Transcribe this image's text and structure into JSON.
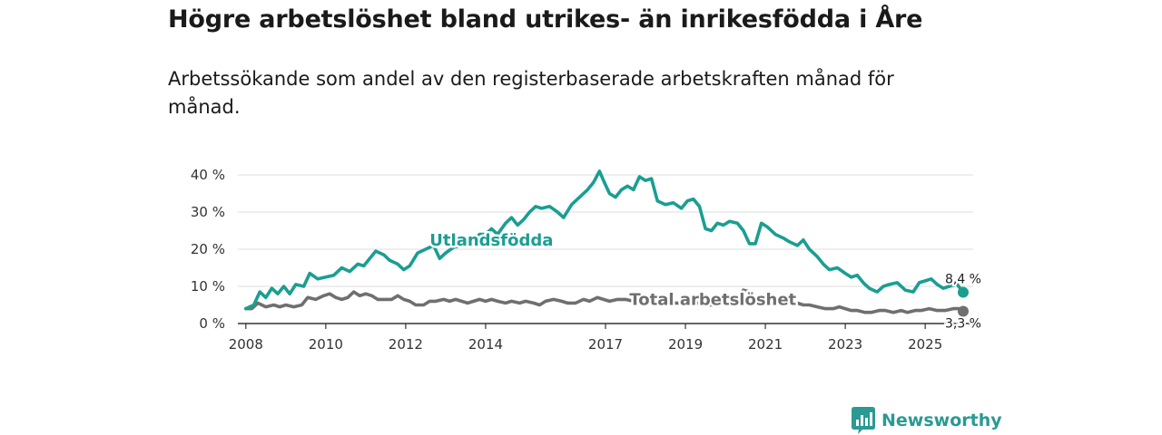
{
  "title": "Högre arbetslöshet bland utrikes- än inrikesfödda i Åre",
  "subtitle": "Arbetssökande som andel av den registerbaserade arbetskraften månad för månad.",
  "brand": {
    "name": "Newsworthy",
    "icon": "bar-chart-logo-icon"
  },
  "colors": {
    "foreign": "#1a9e92",
    "total": "#6f6f6f",
    "grid": "#dddddd",
    "axis": "#333333"
  },
  "chart_data": {
    "type": "line",
    "title": "Högre arbetslöshet bland utrikes- än inrikesfödda i Åre",
    "xlabel": "",
    "ylabel": "",
    "xlim": [
      2007.8,
      2026.2
    ],
    "ylim": [
      0,
      40
    ],
    "y_ticks": [
      0,
      10,
      20,
      30,
      40
    ],
    "y_tick_labels": [
      "0 %",
      "10 %",
      "20 %",
      "30 %",
      "40 %"
    ],
    "x_ticks": [
      2008,
      2010,
      2012,
      2014,
      2017,
      2019,
      2021,
      2023,
      2025
    ],
    "x_tick_labels": [
      "2008",
      "2010",
      "2012",
      "2014",
      "2017",
      "2019",
      "2021",
      "2023",
      "2025"
    ],
    "grid": true,
    "series": [
      {
        "name": "Utlandsfödda",
        "end_label": "8,4 %",
        "points": [
          [
            2008.0,
            4
          ],
          [
            2008.2,
            5
          ],
          [
            2008.35,
            8.5
          ],
          [
            2008.5,
            7
          ],
          [
            2008.65,
            9.5
          ],
          [
            2008.8,
            8
          ],
          [
            2008.95,
            10
          ],
          [
            2009.1,
            8
          ],
          [
            2009.25,
            10.5
          ],
          [
            2009.45,
            10
          ],
          [
            2009.6,
            13.5
          ],
          [
            2009.8,
            12
          ],
          [
            2010.0,
            12.5
          ],
          [
            2010.2,
            13
          ],
          [
            2010.4,
            15
          ],
          [
            2010.6,
            14
          ],
          [
            2010.8,
            16
          ],
          [
            2010.95,
            15.5
          ],
          [
            2011.1,
            17.5
          ],
          [
            2011.25,
            19.5
          ],
          [
            2011.45,
            18.5
          ],
          [
            2011.6,
            17
          ],
          [
            2011.8,
            16
          ],
          [
            2011.95,
            14.5
          ],
          [
            2012.1,
            15.5
          ],
          [
            2012.3,
            19
          ],
          [
            2012.5,
            20
          ],
          [
            2012.7,
            21
          ],
          [
            2012.85,
            17.5
          ],
          [
            2013.0,
            19
          ],
          [
            2013.2,
            20.5
          ],
          [
            2013.4,
            21
          ],
          [
            2013.55,
            22
          ],
          [
            2013.7,
            22.5
          ],
          [
            2013.85,
            24
          ],
          [
            2014.0,
            24
          ],
          [
            2014.15,
            25.5
          ],
          [
            2014.3,
            24
          ],
          [
            2014.5,
            27
          ],
          [
            2014.65,
            28.5
          ],
          [
            2014.8,
            26.5
          ],
          [
            2014.95,
            28
          ],
          [
            2015.1,
            30
          ],
          [
            2015.25,
            31.5
          ],
          [
            2015.4,
            31
          ],
          [
            2015.6,
            31.5
          ],
          [
            2015.8,
            30
          ],
          [
            2015.95,
            28.5
          ],
          [
            2016.15,
            32
          ],
          [
            2016.35,
            34
          ],
          [
            2016.55,
            36
          ],
          [
            2016.7,
            38
          ],
          [
            2016.85,
            41
          ],
          [
            2016.95,
            38.5
          ],
          [
            2017.1,
            35
          ],
          [
            2017.25,
            34
          ],
          [
            2017.4,
            36
          ],
          [
            2017.55,
            37
          ],
          [
            2017.7,
            36
          ],
          [
            2017.85,
            39.5
          ],
          [
            2018.0,
            38.5
          ],
          [
            2018.15,
            39
          ],
          [
            2018.3,
            33
          ],
          [
            2018.5,
            32
          ],
          [
            2018.7,
            32.5
          ],
          [
            2018.9,
            31
          ],
          [
            2019.05,
            33
          ],
          [
            2019.2,
            33.5
          ],
          [
            2019.35,
            31.5
          ],
          [
            2019.5,
            25.5
          ],
          [
            2019.65,
            25
          ],
          [
            2019.8,
            27
          ],
          [
            2019.95,
            26.5
          ],
          [
            2020.1,
            27.5
          ],
          [
            2020.3,
            27
          ],
          [
            2020.45,
            25
          ],
          [
            2020.6,
            21.5
          ],
          [
            2020.75,
            21.5
          ],
          [
            2020.9,
            27
          ],
          [
            2021.05,
            26
          ],
          [
            2021.25,
            24
          ],
          [
            2021.45,
            23
          ],
          [
            2021.6,
            22
          ],
          [
            2021.8,
            21
          ],
          [
            2021.95,
            22.5
          ],
          [
            2022.1,
            20
          ],
          [
            2022.3,
            18
          ],
          [
            2022.45,
            16
          ],
          [
            2022.6,
            14.5
          ],
          [
            2022.8,
            15
          ],
          [
            2023.0,
            13.5
          ],
          [
            2023.15,
            12.5
          ],
          [
            2023.3,
            13
          ],
          [
            2023.45,
            11
          ],
          [
            2023.6,
            9.5
          ],
          [
            2023.8,
            8.5
          ],
          [
            2023.95,
            10
          ],
          [
            2024.1,
            10.5
          ],
          [
            2024.3,
            11
          ],
          [
            2024.5,
            9
          ],
          [
            2024.7,
            8.5
          ],
          [
            2024.85,
            11
          ],
          [
            2025.0,
            11.5
          ],
          [
            2025.15,
            12
          ],
          [
            2025.3,
            10.5
          ],
          [
            2025.45,
            9.5
          ],
          [
            2025.6,
            10
          ],
          [
            2025.8,
            10.5
          ],
          [
            2025.95,
            8.4
          ]
        ]
      },
      {
        "name": "Total arbetslöshet",
        "end_label": "3,3 %",
        "points": [
          [
            2008.0,
            4
          ],
          [
            2008.15,
            4
          ],
          [
            2008.3,
            5.5
          ],
          [
            2008.5,
            4.5
          ],
          [
            2008.7,
            5
          ],
          [
            2008.85,
            4.5
          ],
          [
            2009.0,
            5
          ],
          [
            2009.2,
            4.5
          ],
          [
            2009.4,
            5
          ],
          [
            2009.55,
            7
          ],
          [
            2009.75,
            6.5
          ],
          [
            2009.95,
            7.5
          ],
          [
            2010.1,
            8
          ],
          [
            2010.25,
            7
          ],
          [
            2010.4,
            6.5
          ],
          [
            2010.55,
            7
          ],
          [
            2010.7,
            8.5
          ],
          [
            2010.85,
            7.5
          ],
          [
            2011.0,
            8
          ],
          [
            2011.15,
            7.5
          ],
          [
            2011.3,
            6.5
          ],
          [
            2011.5,
            6.5
          ],
          [
            2011.65,
            6.5
          ],
          [
            2011.8,
            7.5
          ],
          [
            2011.95,
            6.5
          ],
          [
            2012.1,
            6
          ],
          [
            2012.25,
            5
          ],
          [
            2012.45,
            5
          ],
          [
            2012.6,
            6
          ],
          [
            2012.75,
            6
          ],
          [
            2012.95,
            6.5
          ],
          [
            2013.1,
            6
          ],
          [
            2013.25,
            6.5
          ],
          [
            2013.4,
            6
          ],
          [
            2013.55,
            5.5
          ],
          [
            2013.7,
            6
          ],
          [
            2013.85,
            6.5
          ],
          [
            2014.0,
            6
          ],
          [
            2014.15,
            6.5
          ],
          [
            2014.3,
            6
          ],
          [
            2014.5,
            5.5
          ],
          [
            2014.65,
            6
          ],
          [
            2014.85,
            5.5
          ],
          [
            2015.0,
            6
          ],
          [
            2015.2,
            5.5
          ],
          [
            2015.35,
            5
          ],
          [
            2015.5,
            6
          ],
          [
            2015.7,
            6.5
          ],
          [
            2015.9,
            6
          ],
          [
            2016.05,
            5.5
          ],
          [
            2016.25,
            5.5
          ],
          [
            2016.45,
            6.5
          ],
          [
            2016.6,
            6
          ],
          [
            2016.8,
            7
          ],
          [
            2016.95,
            6.5
          ],
          [
            2017.1,
            6
          ],
          [
            2017.3,
            6.5
          ],
          [
            2017.5,
            6.5
          ],
          [
            2017.7,
            6
          ],
          [
            2017.85,
            6.5
          ],
          [
            2018.0,
            6
          ],
          [
            2018.15,
            6
          ],
          [
            2018.35,
            6
          ],
          [
            2018.5,
            5.5
          ],
          [
            2018.7,
            5.5
          ],
          [
            2018.85,
            5.5
          ],
          [
            2019.0,
            6
          ],
          [
            2019.2,
            5.5
          ],
          [
            2019.35,
            5.5
          ],
          [
            2019.55,
            5
          ],
          [
            2019.7,
            5
          ],
          [
            2019.9,
            5.5
          ],
          [
            2020.1,
            5
          ],
          [
            2020.25,
            5.5
          ],
          [
            2020.45,
            9
          ],
          [
            2020.6,
            8.5
          ],
          [
            2020.75,
            7
          ],
          [
            2020.9,
            7
          ],
          [
            2021.05,
            6.5
          ],
          [
            2021.25,
            6.5
          ],
          [
            2021.45,
            6
          ],
          [
            2021.6,
            5.5
          ],
          [
            2021.8,
            5.5
          ],
          [
            2021.95,
            5
          ],
          [
            2022.1,
            5
          ],
          [
            2022.3,
            4.5
          ],
          [
            2022.5,
            4
          ],
          [
            2022.7,
            4
          ],
          [
            2022.85,
            4.5
          ],
          [
            2023.0,
            4
          ],
          [
            2023.15,
            3.5
          ],
          [
            2023.3,
            3.5
          ],
          [
            2023.5,
            3
          ],
          [
            2023.65,
            3
          ],
          [
            2023.85,
            3.5
          ],
          [
            2024.0,
            3.5
          ],
          [
            2024.2,
            3
          ],
          [
            2024.4,
            3.5
          ],
          [
            2024.55,
            3
          ],
          [
            2024.75,
            3.5
          ],
          [
            2024.9,
            3.5
          ],
          [
            2025.1,
            4
          ],
          [
            2025.3,
            3.5
          ],
          [
            2025.5,
            3.5
          ],
          [
            2025.7,
            4
          ],
          [
            2025.85,
            4
          ],
          [
            2025.95,
            3.3
          ]
        ]
      }
    ],
    "annotations": [
      {
        "text": "Utlandsfödda",
        "series": "Utlandsfödda",
        "at_x": 2012.6,
        "at_y": 22.5
      },
      {
        "text": "Total arbetslöshet",
        "series": "Total arbetslöshet",
        "at_x": 2017.6,
        "at_y": 6.5
      }
    ]
  }
}
